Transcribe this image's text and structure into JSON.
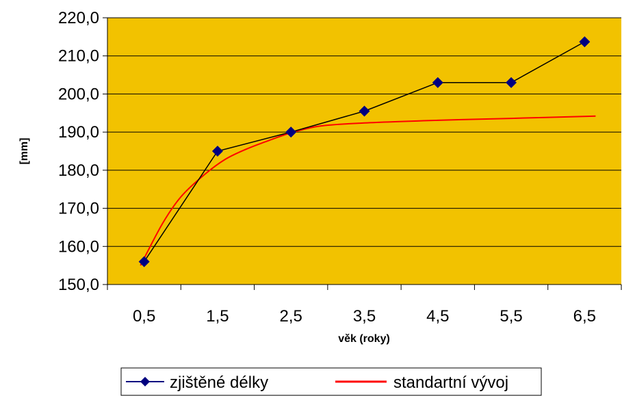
{
  "chart_data": {
    "type": "line",
    "xlabel": "věk (roky)",
    "ylabel": "[mm]",
    "categories": [
      "0,5",
      "1,5",
      "2,5",
      "3,5",
      "4,5",
      "5,5",
      "6,5"
    ],
    "x": [
      0.5,
      1.5,
      2.5,
      3.5,
      4.5,
      5.5,
      6.5
    ],
    "ylim": [
      150,
      220
    ],
    "yticks": [
      150,
      160,
      170,
      180,
      190,
      200,
      210,
      220
    ],
    "ytick_labels": [
      "150,0",
      "160,0",
      "170,0",
      "180,0",
      "190,0",
      "200,0",
      "210,0",
      "220,0"
    ],
    "grid": true,
    "plot_background": "#F2C200",
    "legend_position": "bottom",
    "series": [
      {
        "name": "zjištěné délky",
        "color": "#000080",
        "marker": "diamond",
        "values": [
          156,
          185,
          190,
          195.5,
          203,
          203,
          213.7
        ]
      },
      {
        "name": "standartní vývoj",
        "color": "#FF0000",
        "marker": "none",
        "smooth": true,
        "x": [
          0.45,
          0.75,
          1.0,
          1.3,
          1.6,
          1.9,
          2.2,
          2.5,
          2.9,
          3.5,
          4.5,
          5.5,
          6.65
        ],
        "values": [
          155,
          166,
          173,
          178.5,
          182.8,
          185.6,
          187.8,
          189.8,
          191.6,
          192.4,
          193.1,
          193.6,
          194.2
        ]
      }
    ]
  }
}
